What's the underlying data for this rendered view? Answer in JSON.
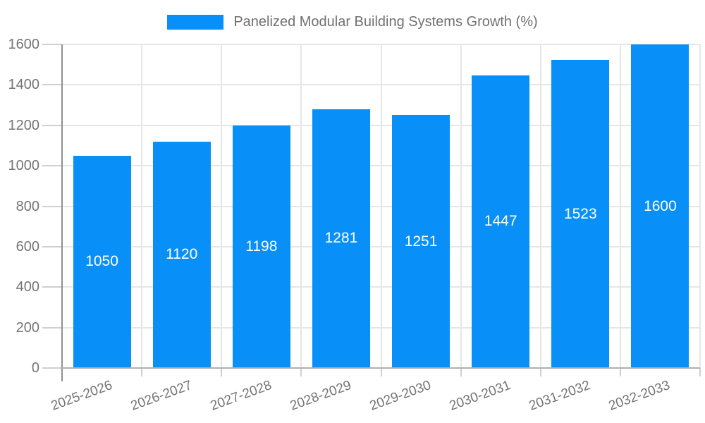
{
  "chart_data": {
    "type": "bar",
    "title": "Panelized Modular Building Systems Growth (%)",
    "categories": [
      "2025-2026",
      "2026-2027",
      "2027-2028",
      "2028-2029",
      "2029-2030",
      "2030-2031",
      "2031-2032",
      "2032-2033"
    ],
    "values": [
      1050,
      1120,
      1198,
      1281,
      1251,
      1447,
      1523,
      1600
    ],
    "xlabel": "",
    "ylabel": "",
    "ylim": [
      0,
      1600
    ],
    "yticks": [
      0,
      200,
      400,
      600,
      800,
      1000,
      1200,
      1400,
      1600
    ],
    "grid": true,
    "legend_position": "top",
    "value_labels": "inside-center"
  },
  "legend": {
    "label": "Panelized Modular Building Systems Growth (%)"
  },
  "colors": {
    "bar": "#0890f8",
    "axis_text": "#757575",
    "gridline": "#e6e6e6",
    "baseline": "#b0b0b0",
    "y_axis_line": "#909090",
    "tick": "#cfcfcf",
    "value_label": "#ffffff",
    "background": "#ffffff"
  }
}
